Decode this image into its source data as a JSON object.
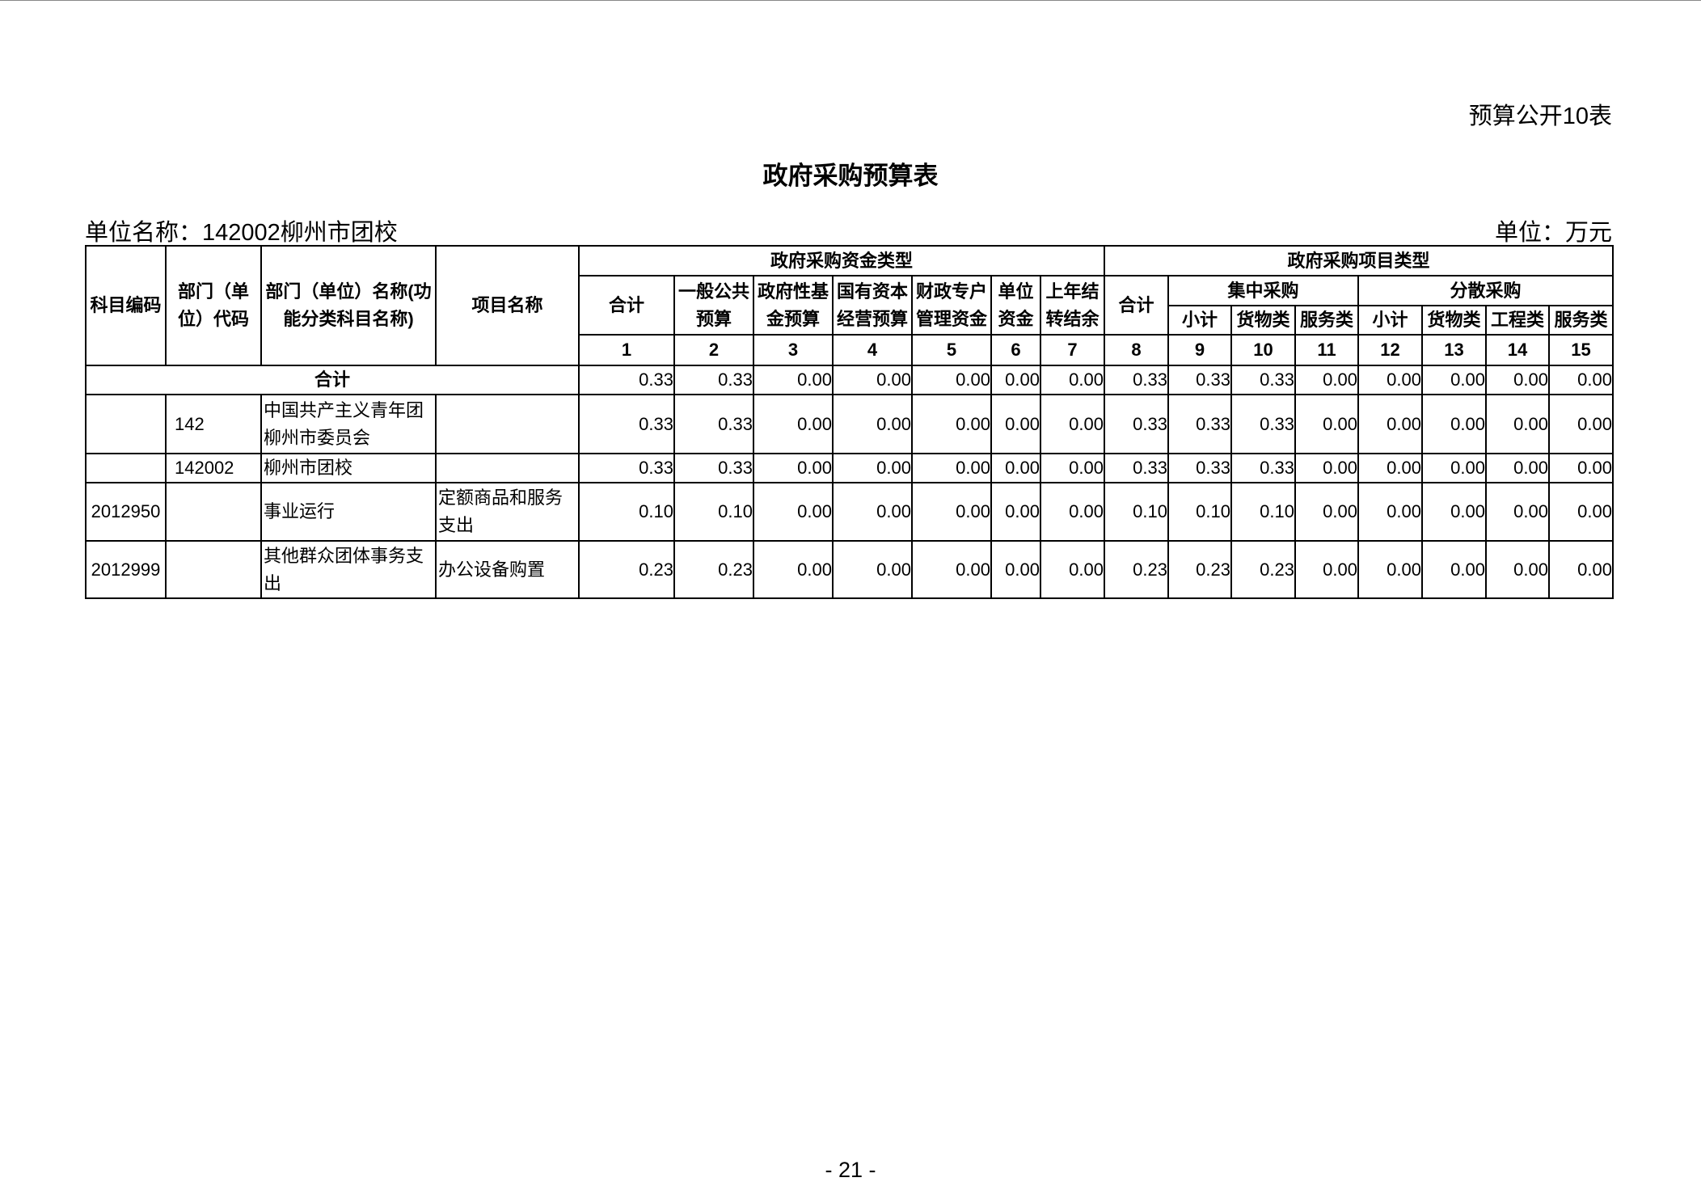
{
  "tag": "预算公开10表",
  "title": "政府采购预算表",
  "unit_name": "单位名称：142002柳州市团校",
  "unit": "单位：万元",
  "headers": {
    "code": "科目编码",
    "dept_code": "部门（单位）代码",
    "dept_name": "部门（单位）名称(功能分类科目名称)",
    "project": "项目名称",
    "fund_type": "政府采购资金类型",
    "project_type": "政府采购项目类型",
    "fund_cols": [
      "合计",
      "一般公共预算",
      "政府性基金预算",
      "国有资本经营预算",
      "财政专户管理资金",
      "单位资金",
      "上年结转结余"
    ],
    "proj_total": "合计",
    "central": "集中采购",
    "dispersed": "分散采购",
    "central_cols": [
      "小计",
      "货物类",
      "服务类"
    ],
    "dispersed_cols": [
      "小计",
      "货物类",
      "工程类",
      "服务类"
    ],
    "numbers": [
      "1",
      "2",
      "3",
      "4",
      "5",
      "6",
      "7",
      "8",
      "9",
      "10",
      "11",
      "12",
      "13",
      "14",
      "15"
    ]
  },
  "total_label": "合计",
  "total_values": [
    "0.33",
    "0.33",
    "0.00",
    "0.00",
    "0.00",
    "0.00",
    "0.00",
    "0.33",
    "0.33",
    "0.33",
    "0.00",
    "0.00",
    "0.00",
    "0.00",
    "0.00"
  ],
  "rows": [
    {
      "code": "",
      "dept_code": "142",
      "name": "中国共产主义青年团柳州市委员会",
      "project": "",
      "values": [
        "0.33",
        "0.33",
        "0.00",
        "0.00",
        "0.00",
        "0.00",
        "0.00",
        "0.33",
        "0.33",
        "0.33",
        "0.00",
        "0.00",
        "0.00",
        "0.00",
        "0.00"
      ]
    },
    {
      "code": "",
      "dept_code": "142002",
      "name": "柳州市团校",
      "project": "",
      "values": [
        "0.33",
        "0.33",
        "0.00",
        "0.00",
        "0.00",
        "0.00",
        "0.00",
        "0.33",
        "0.33",
        "0.33",
        "0.00",
        "0.00",
        "0.00",
        "0.00",
        "0.00"
      ]
    },
    {
      "code": "2012950",
      "dept_code": "",
      "name": "事业运行",
      "project": "定额商品和服务支出",
      "values": [
        "0.10",
        "0.10",
        "0.00",
        "0.00",
        "0.00",
        "0.00",
        "0.00",
        "0.10",
        "0.10",
        "0.10",
        "0.00",
        "0.00",
        "0.00",
        "0.00",
        "0.00"
      ]
    },
    {
      "code": "2012999",
      "dept_code": "",
      "name": "其他群众团体事务支出",
      "project": "办公设备购置",
      "values": [
        "0.23",
        "0.23",
        "0.00",
        "0.00",
        "0.00",
        "0.00",
        "0.00",
        "0.23",
        "0.23",
        "0.23",
        "0.00",
        "0.00",
        "0.00",
        "0.00",
        "0.00"
      ]
    }
  ],
  "page_number": "- 21 -"
}
